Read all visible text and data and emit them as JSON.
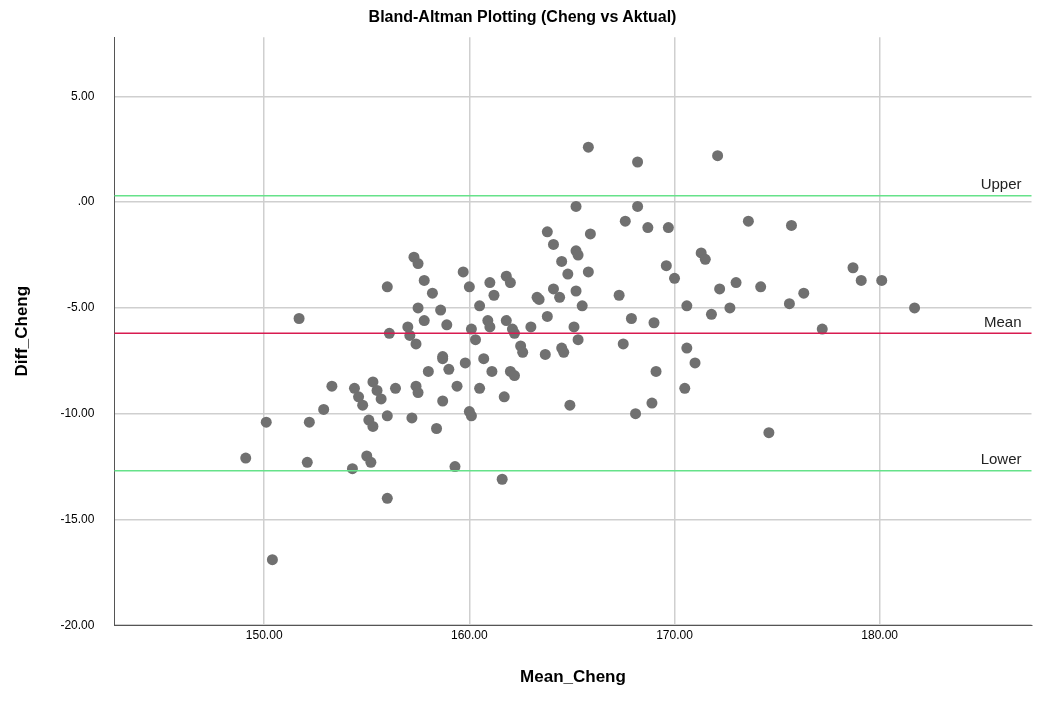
{
  "chart_data": {
    "type": "scatter",
    "title": "Bland-Altman Plotting (Cheng vs Aktual)",
    "xlabel": "Mean_Cheng",
    "ylabel": "Diff_Cheng",
    "xlim": [
      142.7,
      187.4
    ],
    "ylim": [
      -20,
      7.8
    ],
    "xticks": [
      {
        "value": 150,
        "label": "150.00"
      },
      {
        "value": 160,
        "label": "160.00"
      },
      {
        "value": 170,
        "label": "170.00"
      },
      {
        "value": 180,
        "label": "180.00"
      }
    ],
    "yticks": [
      {
        "value": -20,
        "label": "-20.00"
      },
      {
        "value": -15,
        "label": "-15.00"
      },
      {
        "value": -10,
        "label": "-10.00"
      },
      {
        "value": -5,
        "label": "-5.00"
      },
      {
        "value": 0,
        "label": ".00"
      },
      {
        "value": 5,
        "label": "5.00"
      }
    ],
    "grid": true,
    "marker": "circle",
    "ref_lines": [
      {
        "axis": "y",
        "value": 0.3,
        "label": "Upper",
        "color": "#66e28a"
      },
      {
        "axis": "y",
        "value": -6.2,
        "label": "Mean",
        "color": "#d81b50"
      },
      {
        "axis": "y",
        "value": -12.7,
        "label": "Lower",
        "color": "#66e28a"
      }
    ],
    "series": [
      {
        "color": "#707070",
        "x": [
          149.1,
          150.1,
          150.4,
          151.7,
          152.2,
          152.1,
          152.9,
          153.3,
          154.4,
          154.6,
          154.8,
          154.3,
          155.0,
          155.2,
          155.1,
          155.3,
          155.3,
          155.5,
          155.7,
          156.0,
          156.0,
          156.0,
          156.1,
          156.4,
          157.3,
          157.5,
          157.5,
          157.4,
          157.0,
          157.1,
          157.2,
          157.4,
          157.5,
          157.8,
          157.8,
          158.0,
          158.2,
          158.4,
          158.6,
          158.7,
          158.7,
          158.7,
          158.9,
          159.0,
          159.4,
          159.3,
          159.7,
          159.8,
          160.0,
          160.1,
          160.0,
          160.1,
          160.3,
          160.5,
          160.5,
          160.7,
          160.9,
          161.0,
          161.0,
          161.1,
          161.2,
          161.6,
          161.7,
          161.8,
          162.0,
          161.8,
          162.1,
          162.2,
          162.0,
          162.2,
          162.5,
          162.6,
          163.0,
          163.3,
          163.4,
          163.7,
          163.8,
          163.8,
          164.1,
          164.1,
          164.4,
          164.5,
          164.5,
          164.6,
          164.8,
          164.9,
          165.1,
          165.2,
          165.2,
          165.2,
          165.3,
          165.3,
          165.5,
          165.8,
          165.8,
          165.9,
          167.3,
          167.5,
          167.6,
          167.9,
          168.1,
          168.2,
          168.2,
          168.7,
          168.9,
          169.0,
          169.1,
          169.6,
          169.7,
          170.0,
          170.5,
          170.6,
          170.6,
          171.0,
          171.3,
          171.5,
          171.8,
          172.1,
          172.2,
          172.7,
          173.0,
          173.6,
          174.2,
          174.6,
          175.6,
          175.7,
          176.3,
          177.2,
          178.7,
          179.1,
          180.1,
          181.7
        ],
        "values": [
          -12.1,
          -10.4,
          -16.9,
          -5.5,
          -10.4,
          -12.3,
          -9.8,
          -8.7,
          -8.8,
          -9.2,
          -9.6,
          -12.6,
          -12.0,
          -12.3,
          -10.3,
          -10.6,
          -8.5,
          -8.9,
          -9.3,
          -4.0,
          -14.0,
          -10.1,
          -6.2,
          -8.8,
          -2.6,
          -2.9,
          -5.0,
          -6.7,
          -5.9,
          -6.3,
          -10.2,
          -8.7,
          -9.0,
          -3.7,
          -5.6,
          -8.0,
          -4.3,
          -10.7,
          -5.1,
          -7.3,
          -7.4,
          -9.4,
          -5.8,
          -7.9,
          -8.7,
          -12.5,
          -3.3,
          -7.6,
          -9.9,
          -10.1,
          -4.0,
          -6.0,
          -6.5,
          -4.9,
          -8.8,
          -7.4,
          -5.6,
          -5.9,
          -3.8,
          -8.0,
          -4.4,
          -13.1,
          -9.2,
          -3.5,
          -3.8,
          -5.6,
          -6.0,
          -6.2,
          -8.0,
          -8.2,
          -6.8,
          -7.1,
          -5.9,
          -4.5,
          -4.6,
          -7.2,
          -1.4,
          -5.4,
          -2.0,
          -4.1,
          -4.5,
          -2.8,
          -6.9,
          -7.1,
          -3.4,
          -9.6,
          -5.9,
          -4.2,
          -0.2,
          -2.3,
          -2.5,
          -6.5,
          -4.9,
          2.6,
          -3.3,
          -1.5,
          -4.4,
          -6.7,
          -0.9,
          -5.5,
          -10.0,
          1.9,
          -0.2,
          -1.2,
          -9.5,
          -5.7,
          -8.0,
          -3.0,
          -1.2,
          -3.6,
          -8.8,
          -4.9,
          -6.9,
          -7.6,
          -2.4,
          -2.7,
          -5.3,
          2.2,
          -4.1,
          -5.0,
          -3.8,
          -0.9,
          -4.0,
          -10.9,
          -4.8,
          -1.1,
          -4.3,
          -6.0,
          -3.1,
          -3.7,
          -3.7,
          -5.0
        ]
      }
    ]
  }
}
